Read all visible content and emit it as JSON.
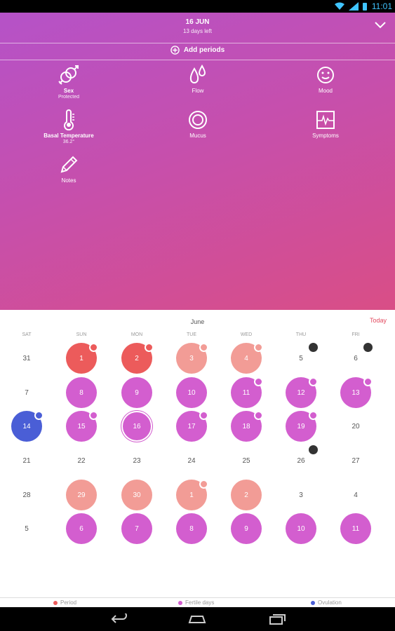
{
  "status": {
    "time": "11:01"
  },
  "header": {
    "date": "16 JUN",
    "days_left": "13 days left",
    "add_periods": "Add periods"
  },
  "tiles": [
    {
      "id": "sex",
      "label": "Sex",
      "sub": "Protected",
      "icon": "sex-icon"
    },
    {
      "id": "flow",
      "label": "Flow",
      "sub": "",
      "icon": "drops-icon"
    },
    {
      "id": "mood",
      "label": "Mood",
      "sub": "",
      "icon": "smiley-icon"
    },
    {
      "id": "basal",
      "label": "Basal Temperature",
      "sub": "36.2°",
      "icon": "thermometer-icon"
    },
    {
      "id": "mucus",
      "label": "Mucus",
      "sub": "",
      "icon": "mucus-icon"
    },
    {
      "id": "symptoms",
      "label": "Symptoms",
      "sub": "",
      "icon": "pulse-icon"
    },
    {
      "id": "notes",
      "label": "Notes",
      "sub": "",
      "icon": "pencil-icon"
    }
  ],
  "calendar": {
    "month": "June",
    "today_label": "Today",
    "weekdays": [
      "SAT",
      "SUN",
      "MON",
      "TUE",
      "WED",
      "THU",
      "FRI"
    ],
    "weeks": [
      [
        {
          "d": "31"
        },
        {
          "d": "1",
          "type": "period",
          "badge": "white"
        },
        {
          "d": "2",
          "type": "period",
          "badge": "white"
        },
        {
          "d": "3",
          "type": "pred",
          "badge": "white"
        },
        {
          "d": "4",
          "type": "pred",
          "badge": "white"
        },
        {
          "d": "5",
          "badge": "dark"
        },
        {
          "d": "6",
          "badge": "dark"
        }
      ],
      [
        {
          "d": "7"
        },
        {
          "d": "8",
          "type": "fertile"
        },
        {
          "d": "9",
          "type": "fertile"
        },
        {
          "d": "10",
          "type": "fertile"
        },
        {
          "d": "11",
          "type": "fertile",
          "badge": "white"
        },
        {
          "d": "12",
          "type": "fertile",
          "badge": "white"
        },
        {
          "d": "13",
          "type": "fertile",
          "badge": "white"
        }
      ],
      [
        {
          "d": "14",
          "type": "ovul",
          "badge": "white"
        },
        {
          "d": "15",
          "type": "fertile",
          "badge": "white"
        },
        {
          "d": "16",
          "type": "fertile",
          "selected": true
        },
        {
          "d": "17",
          "type": "fertile",
          "badge": "white"
        },
        {
          "d": "18",
          "type": "fertile",
          "badge": "white"
        },
        {
          "d": "19",
          "type": "fertile",
          "badge": "white"
        },
        {
          "d": "20"
        }
      ],
      [
        {
          "d": "21"
        },
        {
          "d": "22"
        },
        {
          "d": "23"
        },
        {
          "d": "24"
        },
        {
          "d": "25"
        },
        {
          "d": "26",
          "badge_top": "dark"
        },
        {
          "d": "27"
        }
      ],
      [
        {
          "d": "28"
        },
        {
          "d": "29",
          "type": "pred"
        },
        {
          "d": "30",
          "type": "pred"
        },
        {
          "d": "1",
          "type": "pred",
          "badge": "white"
        },
        {
          "d": "2",
          "type": "pred"
        },
        {
          "d": "3"
        },
        {
          "d": "4"
        }
      ],
      [
        {
          "d": "5"
        },
        {
          "d": "6",
          "type": "fertile"
        },
        {
          "d": "7",
          "type": "fertile"
        },
        {
          "d": "8",
          "type": "fertile"
        },
        {
          "d": "9",
          "type": "fertile"
        },
        {
          "d": "10",
          "type": "fertile"
        },
        {
          "d": "11",
          "type": "fertile"
        }
      ]
    ]
  },
  "legend": [
    {
      "label": "Period",
      "color": "#ec5b5b"
    },
    {
      "label": "Fertile days",
      "color": "#d35ecf"
    },
    {
      "label": "Ovulation",
      "color": "#4a5ed6"
    }
  ]
}
